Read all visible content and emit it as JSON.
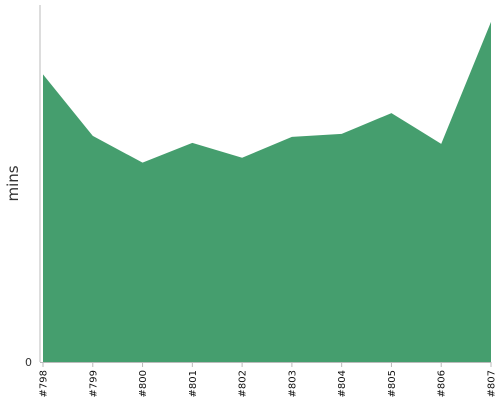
{
  "chart_data": {
    "type": "area",
    "title": "",
    "xlabel": "",
    "ylabel": "mins",
    "categories": [
      "#798",
      "#799",
      "#800",
      "#801",
      "#802",
      "#803",
      "#804",
      "#805",
      "#806",
      "#807"
    ],
    "series": [
      {
        "color": "#459E6E",
        "values": [
          29.0,
          22.8,
          20.1,
          22.1,
          20.6,
          22.7,
          23.0,
          25.1,
          22.0,
          34.3
        ]
      }
    ],
    "ylim": [
      0,
      36
    ],
    "yticks": [
      {
        "value": 0,
        "label": "0"
      }
    ],
    "grid": false,
    "legend": "none",
    "axis_color": "#bbbbbb"
  }
}
